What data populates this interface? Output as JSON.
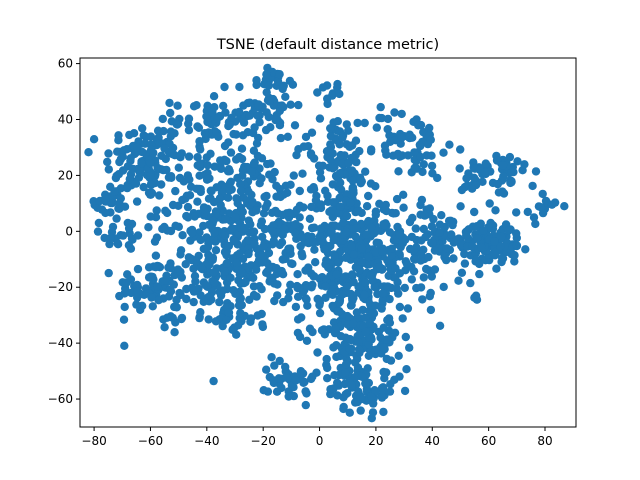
{
  "chart_data": {
    "type": "scatter",
    "title": "TSNE (default distance metric)",
    "xlabel": "",
    "ylabel": "",
    "xlim": [
      -85,
      91
    ],
    "ylim": [
      -70,
      62
    ],
    "x_ticks": [
      -80,
      -60,
      -40,
      -20,
      0,
      20,
      40,
      60,
      80
    ],
    "y_ticks": [
      -60,
      -40,
      -20,
      0,
      20,
      40,
      60
    ],
    "x_tick_labels": [
      "−80",
      "−60",
      "−40",
      "−20",
      "0",
      "20",
      "40",
      "60",
      "80"
    ],
    "y_tick_labels": [
      "−60",
      "−40",
      "−20",
      "0",
      "20",
      "40",
      "60"
    ],
    "grid": false,
    "marker_color": "#1f77b4",
    "series": [
      {
        "clusters": [
          {
            "center": [
              -62,
              25
            ],
            "spread": [
              7,
              7
            ],
            "count": 110
          },
          {
            "center": [
              -74,
              10
            ],
            "spread": [
              4,
              4
            ],
            "count": 30
          },
          {
            "center": [
              -70,
              -1
            ],
            "spread": [
              4,
              3
            ],
            "count": 20
          },
          {
            "center": [
              -60,
              -20
            ],
            "spread": [
              6,
              5
            ],
            "count": 60
          },
          {
            "center": [
              -52,
              -30
            ],
            "spread": [
              3,
              3
            ],
            "count": 10
          },
          {
            "center": [
              -38,
              40
            ],
            "spread": [
              7,
              5
            ],
            "count": 60
          },
          {
            "center": [
              -18,
              45
            ],
            "spread": [
              5,
              5
            ],
            "count": 45
          },
          {
            "center": [
              -14,
              55
            ],
            "spread": [
              3,
              2
            ],
            "count": 12
          },
          {
            "center": [
              -35,
              10
            ],
            "spread": [
              11,
              12
            ],
            "count": 230
          },
          {
            "center": [
              -32,
              -15
            ],
            "spread": [
              11,
              10
            ],
            "count": 190
          },
          {
            "center": [
              -15,
              0
            ],
            "spread": [
              8,
              12
            ],
            "count": 90
          },
          {
            "center": [
              -33,
              -32
            ],
            "spread": [
              5,
              3
            ],
            "count": 15
          },
          {
            "center": [
              -10,
              -52
            ],
            "spread": [
              4,
              5
            ],
            "count": 35
          },
          {
            "center": [
              5,
              50
            ],
            "spread": [
              3,
              2
            ],
            "count": 10
          },
          {
            "center": [
              5,
              30
            ],
            "spread": [
              6,
              6
            ],
            "count": 45
          },
          {
            "center": [
              30,
              32
            ],
            "spread": [
              7,
              6
            ],
            "count": 60
          },
          {
            "center": [
              8,
              8
            ],
            "spread": [
              7,
              10
            ],
            "count": 110
          },
          {
            "center": [
              10,
              -20
            ],
            "spread": [
              9,
              14
            ],
            "count": 250
          },
          {
            "center": [
              22,
              -5
            ],
            "spread": [
              10,
              10
            ],
            "count": 160
          },
          {
            "center": [
              18,
              -42
            ],
            "spread": [
              7,
              6
            ],
            "count": 80
          },
          {
            "center": [
              15,
              -57
            ],
            "spread": [
              6,
              4
            ],
            "count": 60
          },
          {
            "center": [
              45,
              -3
            ],
            "spread": [
              8,
              5
            ],
            "count": 90
          },
          {
            "center": [
              62,
              -4
            ],
            "spread": [
              5,
              4
            ],
            "count": 80
          },
          {
            "center": [
              62,
              20
            ],
            "spread": [
              6,
              5
            ],
            "count": 60
          },
          {
            "center": [
              79,
              8
            ],
            "spread": [
              3,
              3
            ],
            "count": 15
          },
          {
            "center": [
              42,
              -22
            ],
            "spread": [
              4,
              3
            ],
            "count": 8
          },
          {
            "center": [
              56,
              -24
            ],
            "spread": [
              1,
              1
            ],
            "count": 3
          },
          {
            "center": [
              38,
              25
            ],
            "spread": [
              3,
              3
            ],
            "count": 8
          }
        ]
      }
    ]
  }
}
